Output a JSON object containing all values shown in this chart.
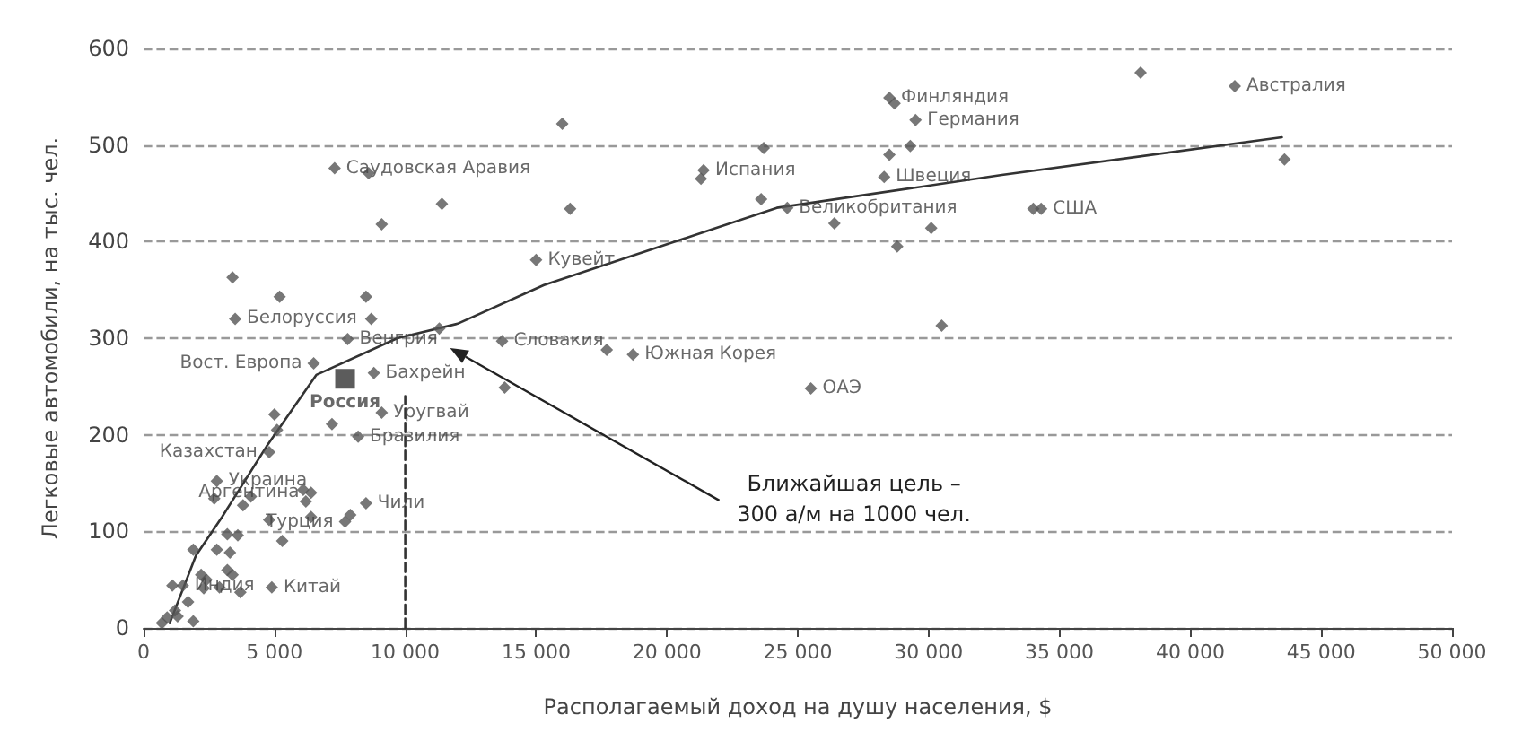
{
  "chart_data": {
    "type": "scatter",
    "xlabel": "Располагаемый доход на душу населения, $",
    "ylabel": "Легковые автомобили, на тыс. чел.",
    "xlim": [
      0,
      50000
    ],
    "xticks": [
      0,
      {
        "value": 5000,
        "label": "5 000"
      },
      {
        "value": 10000,
        "label": "10 000"
      },
      {
        "value": 15000,
        "label": "15 000"
      },
      {
        "value": 20000,
        "label": "20 000"
      },
      {
        "value": 25000,
        "label": "25 000"
      },
      {
        "value": 30000,
        "label": "30 000"
      },
      {
        "value": 35000,
        "label": "35 000"
      },
      {
        "value": 40000,
        "label": "40 000"
      },
      {
        "value": 45000,
        "label": "45 000"
      },
      {
        "value": 50000,
        "label": "50 000"
      }
    ],
    "ylim": [
      0,
      600
    ],
    "yticks": [
      0,
      100,
      200,
      300,
      400,
      500,
      600
    ],
    "grid": "y",
    "marker": "diamond",
    "annotations": [
      "Ближайшая цель –\n300 а/м на 1000 чел."
    ],
    "series": [
      {
        "color": "#555555",
        "x": [
          16000,
          7300,
          8600,
          11400,
          9100,
          16300,
          15000,
          3400,
          5200,
          8500,
          3500,
          8700,
          11300,
          7800,
          13700,
          6500,
          8800,
          13800,
          9100,
          5000,
          5100,
          7200,
          8200,
          4800,
          2800,
          2700,
          6100,
          6400,
          6200,
          4100,
          3800,
          6400,
          8500,
          7900,
          7700,
          4800,
          5300,
          3200,
          3600,
          1900,
          2800,
          3300,
          3200,
          3400,
          2200,
          2400,
          2900,
          3700,
          4900,
          1100,
          1500,
          2300,
          1700,
          1200,
          900,
          1300,
          1900,
          700,
          23700,
          21300,
          21400,
          23600,
          24600,
          26400,
          28500,
          28700,
          29500,
          28500,
          29300,
          28300,
          30100,
          28800,
          30500,
          17700,
          18700,
          25500,
          38100,
          41700,
          43600,
          34000,
          34300
        ],
        "values": [
          522,
          476,
          471,
          439,
          418,
          434,
          381,
          363,
          343,
          343,
          320,
          320,
          310,
          299,
          297,
          274,
          264,
          249,
          223,
          221,
          205,
          211,
          198,
          182,
          152,
          134,
          143,
          140,
          131,
          136,
          127,
          115,
          129,
          117,
          110,
          112,
          90,
          97,
          96,
          81,
          81,
          78,
          60,
          55,
          55,
          50,
          42,
          37,
          42,
          44,
          44,
          41,
          27,
          18,
          11,
          12,
          7,
          5,
          497,
          465,
          474,
          444,
          435,
          419,
          549,
          543,
          526,
          490,
          499,
          467,
          414,
          395,
          313,
          288,
          283,
          248,
          575,
          561,
          485,
          434,
          434
        ],
        "value_labels": [
          null,
          "Саудовская Аравия",
          null,
          null,
          null,
          null,
          "Кувейт",
          null,
          null,
          null,
          "Белоруссия",
          null,
          null,
          "Венгрия",
          "Словакия",
          "Вост. Европа",
          "Бахрейн",
          null,
          "Уругвай",
          null,
          null,
          null,
          "Бразилия",
          "Казахстан",
          "Украина",
          null,
          null,
          "Аргентина",
          null,
          null,
          null,
          null,
          "Чили",
          null,
          "Турция",
          null,
          null,
          null,
          null,
          null,
          null,
          null,
          null,
          null,
          null,
          null,
          null,
          null,
          "Китай",
          null,
          "Индия",
          null,
          null,
          null,
          null,
          null,
          null,
          null,
          null,
          null,
          "Испания",
          null,
          "Великобритания",
          null,
          "Финляндия",
          null,
          "Германия",
          null,
          null,
          "Швеция",
          null,
          null,
          null,
          null,
          "Южная Корея",
          "ОАЭ",
          null,
          "Австралия",
          null,
          null,
          "США"
        ]
      },
      {
        "marker": "square",
        "color": "#333333",
        "x": [
          7700
        ],
        "values": [
          258
        ],
        "value_labels": [
          "Россия"
        ]
      },
      {
        "type": "line",
        "marker": "none",
        "color": "#333333",
        "x": [
          1000,
          2000,
          3000,
          4700,
          6600,
          9700,
          12000,
          15300,
          24200,
          32800,
          43500
        ],
        "values": [
          5,
          75,
          115,
          188,
          262,
          300,
          315,
          355,
          435,
          469,
          508
        ]
      },
      {
        "type": "line",
        "marker": "none",
        "line_style": "dashed",
        "color": "#333333",
        "x": [
          10000,
          10000
        ],
        "values": [
          0,
          240
        ]
      }
    ]
  }
}
